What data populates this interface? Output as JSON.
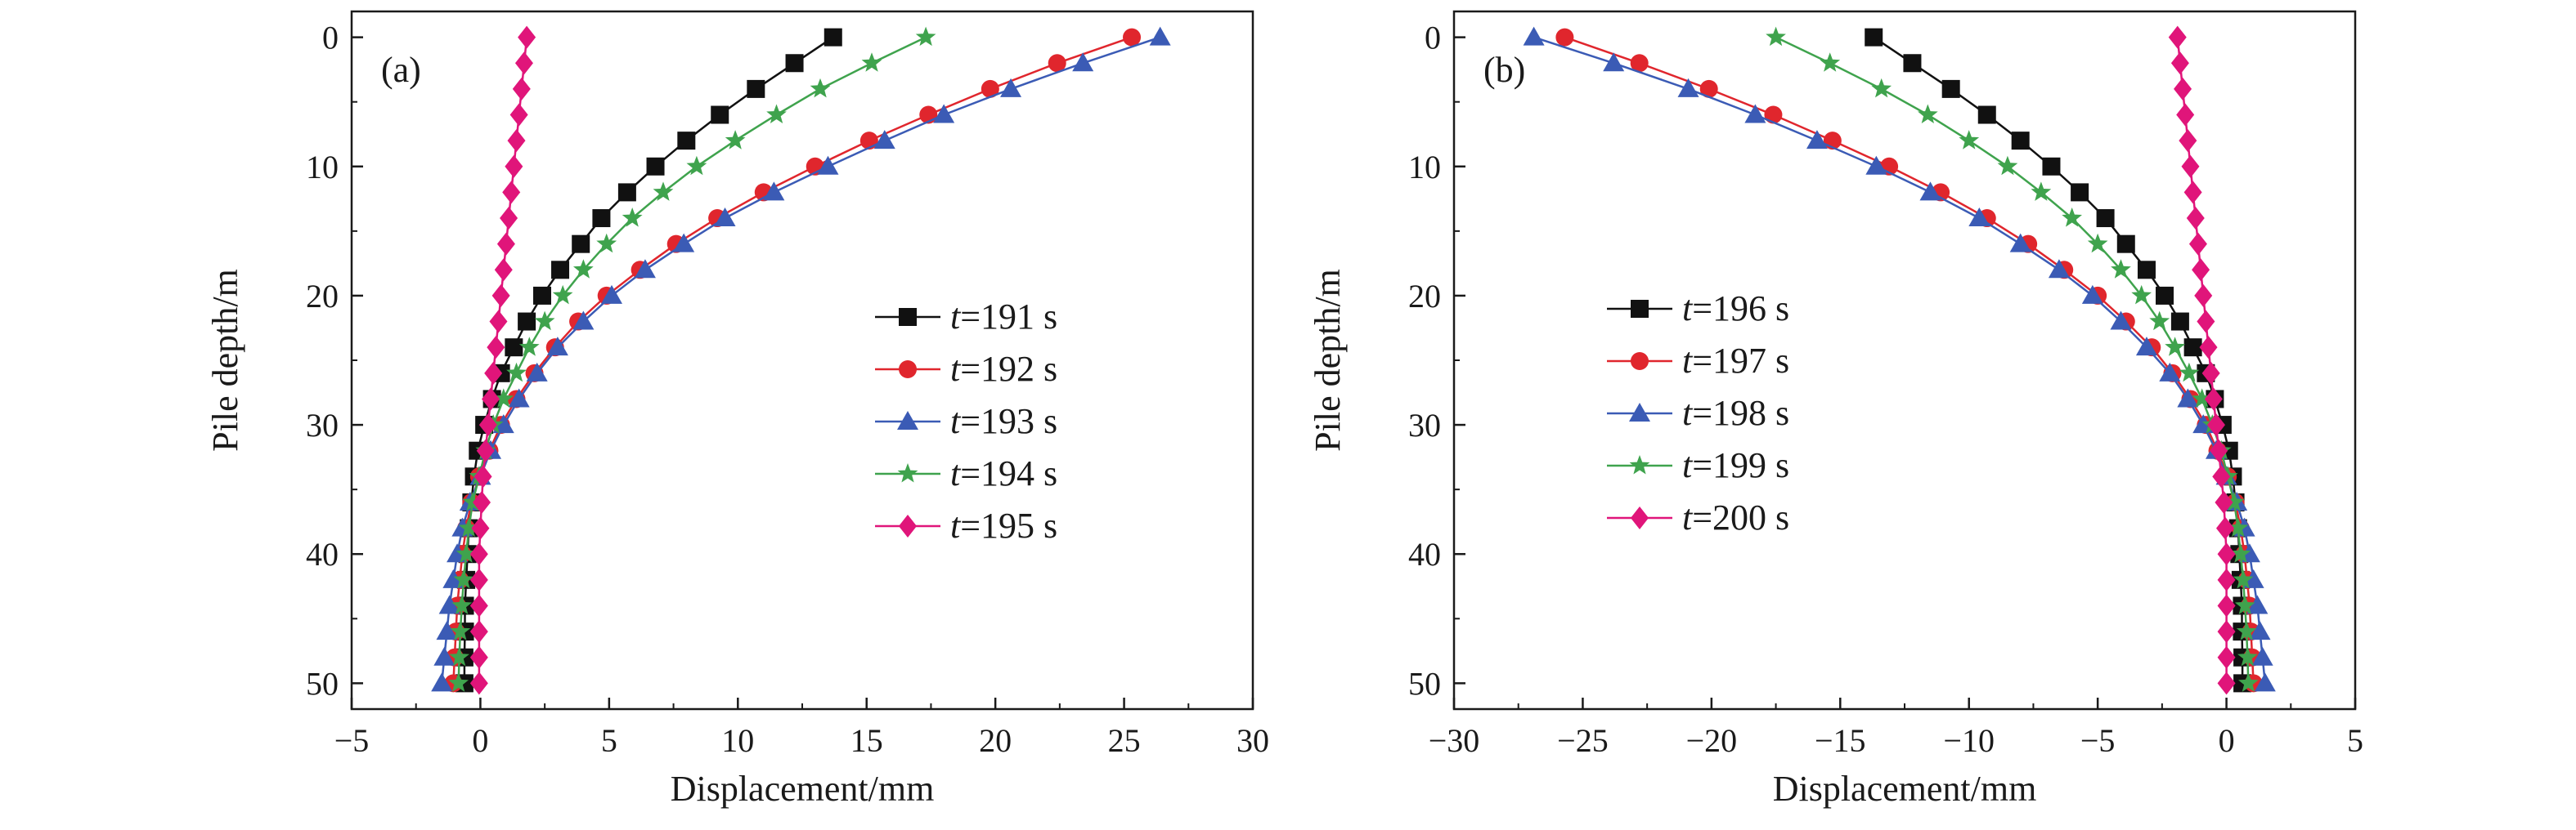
{
  "chart_data": [
    {
      "type": "line",
      "panel_label": "(a)",
      "xlabel": "Displacement/mm",
      "ylabel": "Pile depth/m",
      "xlim": [
        -5,
        30
      ],
      "ylim": [
        52,
        -2
      ],
      "y_inverted": true,
      "xticks": [
        -5,
        0,
        5,
        10,
        15,
        20,
        25,
        30
      ],
      "yticks": [
        0,
        10,
        20,
        30,
        40,
        50
      ],
      "grid": false,
      "legend_position": "center-right",
      "y": [
        0,
        2,
        4,
        6,
        8,
        10,
        12,
        14,
        16,
        18,
        20,
        22,
        24,
        26,
        28,
        30,
        32,
        34,
        36,
        38,
        40,
        42,
        44,
        46,
        48,
        50
      ],
      "series": [
        {
          "name": "t=191 s",
          "name_italic": "t",
          "name_rest": "=191 s",
          "color": "#111111",
          "marker": "square",
          "x": [
            13.7,
            12.2,
            10.7,
            9.3,
            8.0,
            6.8,
            5.7,
            4.7,
            3.9,
            3.1,
            2.4,
            1.8,
            1.3,
            0.8,
            0.45,
            0.15,
            -0.1,
            -0.25,
            -0.35,
            -0.45,
            -0.5,
            -0.55,
            -0.6,
            -0.6,
            -0.62,
            -0.62
          ]
        },
        {
          "name": "t=192 s",
          "name_italic": "t",
          "name_rest": "=192 s",
          "color": "#e0262d",
          "marker": "circle",
          "x": [
            25.3,
            22.4,
            19.8,
            17.4,
            15.1,
            13.0,
            11.0,
            9.2,
            7.6,
            6.2,
            4.9,
            3.8,
            2.9,
            2.1,
            1.4,
            0.8,
            0.35,
            -0.05,
            -0.35,
            -0.55,
            -0.7,
            -0.8,
            -0.9,
            -0.95,
            -1.0,
            -1.05
          ]
        },
        {
          "name": "t=193 s",
          "name_italic": "t",
          "name_rest": "=193 s",
          "color": "#3b5bb5",
          "marker": "triangle",
          "x": [
            26.4,
            23.4,
            20.6,
            18.0,
            15.7,
            13.5,
            11.4,
            9.5,
            7.9,
            6.4,
            5.1,
            4.0,
            3.0,
            2.2,
            1.5,
            0.9,
            0.4,
            0.0,
            -0.4,
            -0.7,
            -0.9,
            -1.05,
            -1.2,
            -1.3,
            -1.4,
            -1.5
          ]
        },
        {
          "name": "t=194 s",
          "name_italic": "t",
          "name_rest": "=194 s",
          "color": "#3fa34d",
          "marker": "star",
          "x": [
            17.3,
            15.2,
            13.2,
            11.5,
            9.9,
            8.4,
            7.1,
            5.9,
            4.9,
            4.0,
            3.2,
            2.5,
            1.9,
            1.4,
            0.9,
            0.5,
            0.2,
            -0.05,
            -0.3,
            -0.45,
            -0.55,
            -0.65,
            -0.72,
            -0.78,
            -0.82,
            -0.85
          ]
        },
        {
          "name": "t=195 s",
          "name_italic": "t",
          "name_rest": "=195 s",
          "color": "#e0157a",
          "marker": "diamond",
          "x": [
            1.8,
            1.7,
            1.6,
            1.5,
            1.4,
            1.3,
            1.2,
            1.1,
            1.0,
            0.9,
            0.8,
            0.7,
            0.6,
            0.5,
            0.4,
            0.3,
            0.2,
            0.1,
            0.05,
            0.0,
            -0.05,
            -0.05,
            -0.05,
            -0.05,
            -0.05,
            -0.05
          ]
        }
      ]
    },
    {
      "type": "line",
      "panel_label": "(b)",
      "xlabel": "Displacement/mm",
      "ylabel": "Pile depth/m",
      "xlim": [
        -30,
        5
      ],
      "ylim": [
        52,
        -2
      ],
      "y_inverted": true,
      "xticks": [
        -30,
        -25,
        -20,
        -15,
        -10,
        -5,
        0,
        5
      ],
      "yticks": [
        0,
        10,
        20,
        30,
        40,
        50
      ],
      "grid": false,
      "legend_position": "center-left",
      "y": [
        0,
        2,
        4,
        6,
        8,
        10,
        12,
        14,
        16,
        18,
        20,
        22,
        24,
        26,
        28,
        30,
        32,
        34,
        36,
        38,
        40,
        42,
        44,
        46,
        48,
        50
      ],
      "series": [
        {
          "name": "t=196 s",
          "name_italic": "t",
          "name_rest": "=196 s",
          "color": "#111111",
          "marker": "square",
          "x": [
            -13.7,
            -12.2,
            -10.7,
            -9.3,
            -8.0,
            -6.8,
            -5.7,
            -4.7,
            -3.9,
            -3.1,
            -2.4,
            -1.8,
            -1.3,
            -0.8,
            -0.45,
            -0.15,
            0.1,
            0.25,
            0.35,
            0.45,
            0.5,
            0.55,
            0.6,
            0.6,
            0.62,
            0.62
          ]
        },
        {
          "name": "t=197 s",
          "name_italic": "t",
          "name_rest": "=197 s",
          "color": "#e0262d",
          "marker": "circle",
          "x": [
            -25.7,
            -22.8,
            -20.1,
            -17.6,
            -15.3,
            -13.1,
            -11.1,
            -9.3,
            -7.7,
            -6.3,
            -5.0,
            -3.9,
            -2.9,
            -2.1,
            -1.4,
            -0.8,
            -0.35,
            0.05,
            0.35,
            0.55,
            0.7,
            0.8,
            0.9,
            0.95,
            1.0,
            1.05
          ]
        },
        {
          "name": "t=198 s",
          "name_italic": "t",
          "name_rest": "=198 s",
          "color": "#3b5bb5",
          "marker": "triangle",
          "x": [
            -26.9,
            -23.8,
            -20.9,
            -18.3,
            -15.9,
            -13.6,
            -11.5,
            -9.6,
            -8.0,
            -6.5,
            -5.2,
            -4.1,
            -3.1,
            -2.2,
            -1.5,
            -0.9,
            -0.4,
            0.0,
            0.4,
            0.7,
            0.9,
            1.05,
            1.2,
            1.3,
            1.4,
            1.5
          ]
        },
        {
          "name": "t=199 s",
          "name_italic": "t",
          "name_rest": "=199 s",
          "color": "#3fa34d",
          "marker": "star",
          "x": [
            -17.5,
            -15.4,
            -13.4,
            -11.6,
            -10.0,
            -8.5,
            -7.2,
            -6.0,
            -5.0,
            -4.1,
            -3.3,
            -2.6,
            -2.0,
            -1.45,
            -0.95,
            -0.55,
            -0.2,
            0.05,
            0.3,
            0.45,
            0.55,
            0.65,
            0.72,
            0.78,
            0.82,
            0.85
          ]
        },
        {
          "name": "t=200 s",
          "name_italic": "t",
          "name_rest": "=200 s",
          "color": "#e0157a",
          "marker": "diamond",
          "x": [
            -1.9,
            -1.8,
            -1.7,
            -1.6,
            -1.5,
            -1.4,
            -1.3,
            -1.2,
            -1.1,
            -1.0,
            -0.9,
            -0.8,
            -0.7,
            -0.6,
            -0.5,
            -0.4,
            -0.3,
            -0.2,
            -0.1,
            -0.05,
            0.0,
            0.0,
            0.0,
            0.0,
            0.0,
            0.0
          ]
        }
      ]
    }
  ]
}
